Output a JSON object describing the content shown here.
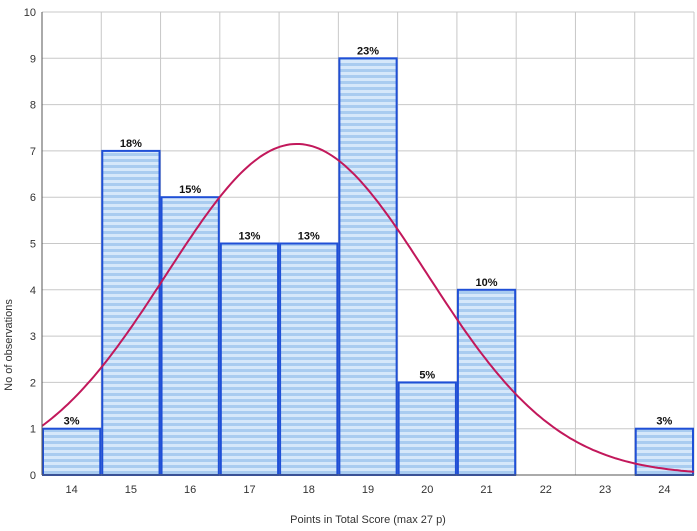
{
  "chart_data": {
    "type": "bar",
    "title": "",
    "xlabel": "Points in Total Score (max 27 p)",
    "ylabel": "No of observations",
    "categories": [
      "14",
      "15",
      "16",
      "17",
      "18",
      "19",
      "20",
      "21",
      "22",
      "23",
      "24"
    ],
    "values": [
      1,
      7,
      6,
      5,
      5,
      9,
      2,
      4,
      0,
      0,
      1
    ],
    "data_labels": [
      "3%",
      "18%",
      "15%",
      "13%",
      "13%",
      "23%",
      "5%",
      "10%",
      "",
      "",
      "3%"
    ],
    "ylim": [
      0,
      10
    ],
    "yticks": [
      "0",
      "1",
      "2",
      "3",
      "4",
      "5",
      "6",
      "7",
      "8",
      "9",
      "10"
    ],
    "grid": true,
    "overlay": {
      "type": "normal-curve",
      "mean": 17.8,
      "sd": 2.2,
      "peak": 7.15
    },
    "colors": {
      "bar_fill": "#c9e1f8",
      "bar_stripe": "#9cc5ee",
      "bar_edge": "#1f4fd6",
      "curve": "#c2185b",
      "grid": "#c8c8c8"
    }
  }
}
